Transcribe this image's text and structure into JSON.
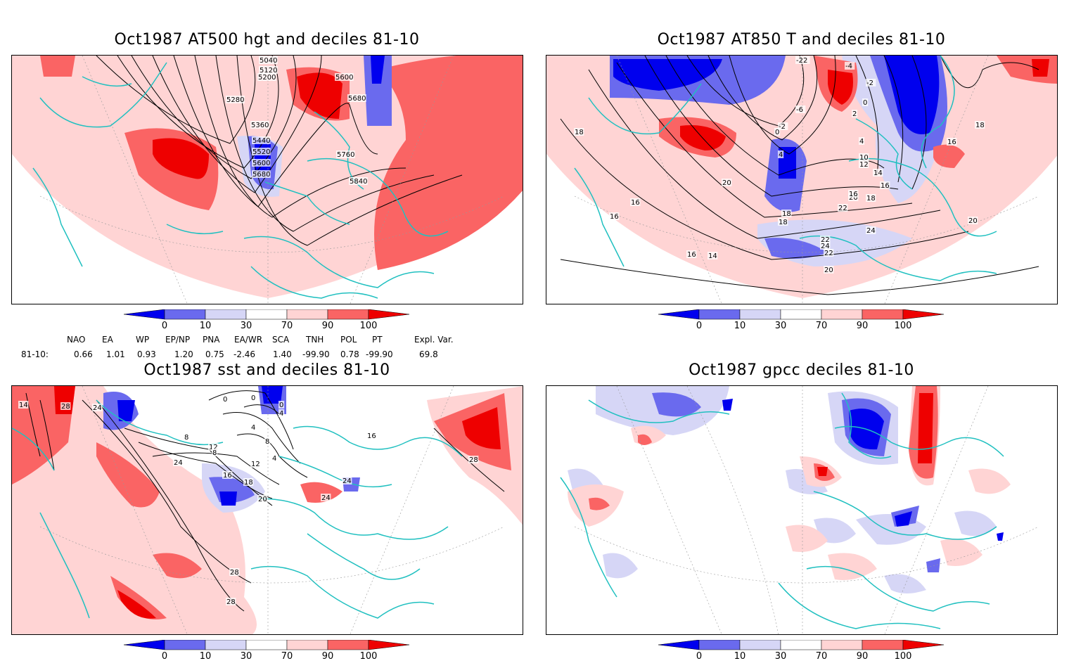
{
  "panels": [
    {
      "title": "Oct1987 AT500 hgt and deciles 81-10",
      "contour_labels": [
        "5040",
        "5120",
        "5200",
        "5280",
        "5360",
        "5440",
        "5520",
        "5600",
        "5680",
        "5600",
        "5680",
        "5760",
        "5840"
      ]
    },
    {
      "title": "Oct1987 AT850 T and deciles 81-10",
      "contour_labels": [
        "-22",
        "-4",
        "-2",
        "-6",
        "-2",
        "0",
        "0",
        "2",
        "4",
        "4",
        "10",
        "12",
        "14",
        "16",
        "18",
        "20",
        "22",
        "24",
        "24",
        "22",
        "20",
        "18",
        "16",
        "14",
        "16",
        "18",
        "18",
        "20",
        "22",
        "16",
        "16",
        "20",
        "18",
        "16"
      ]
    },
    {
      "title": "Oct1987 sst and deciles 81-10",
      "contour_labels": [
        "0",
        "0",
        "0",
        "4",
        "4",
        "8",
        "8",
        "12",
        "12",
        "4",
        "8",
        "16",
        "18",
        "20",
        "24",
        "24",
        "28",
        "28",
        "28",
        "28",
        "24",
        "16",
        "24",
        "14"
      ]
    },
    {
      "title": "Oct1987 gpcc deciles 81-10",
      "contour_labels": []
    }
  ],
  "colorbar": {
    "labels": [
      "0",
      "10",
      "30",
      "70",
      "90",
      "100"
    ],
    "colors": [
      "#0000ee",
      "#6a6aee",
      "#d6d6f6",
      "#ffffff",
      "#ffd4d4",
      "#fa6464",
      "#ee0000"
    ]
  },
  "teleconnections": {
    "header": [
      "NAO",
      "EA",
      "WP",
      "EP/NP",
      "PNA",
      "EA/WR",
      "SCA",
      "TNH",
      "POL",
      "PT",
      "Expl. Var."
    ],
    "row_label": "81-10:",
    "values": [
      "0.66",
      "1.01",
      "0.93",
      "1.20",
      "0.75",
      "-2.46",
      "1.40",
      "-99.90",
      "0.78",
      "-99.90",
      "69.8"
    ]
  },
  "colors": {
    "coast": "#20c0c0",
    "dark_red": "#ee0000",
    "mid_red": "#fa6464",
    "light_red": "#ffd4d4",
    "light_blue": "#d6d6f6",
    "mid_blue": "#6a6aee",
    "dark_blue": "#0000ee"
  }
}
